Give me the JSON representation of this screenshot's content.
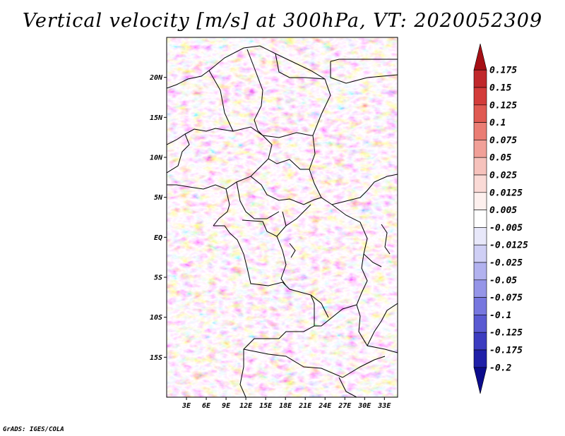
{
  "title": "Vertical velocity [m/s] at 300hPa, VT: 2020052309",
  "footer": "GrADS: IGES/COLA",
  "chart_data": {
    "type": "heatmap",
    "title": "Vertical velocity [m/s] at 300hPa, VT: 2020052309",
    "variable": "Vertical velocity",
    "units": "m/s",
    "level": "300hPa",
    "valid_time": "2020052309",
    "xlabel": "",
    "ylabel": "",
    "x_ticks": [
      "3E",
      "6E",
      "9E",
      "12E",
      "15E",
      "18E",
      "21E",
      "24E",
      "27E",
      "30E",
      "33E"
    ],
    "x_tick_values": [
      3,
      6,
      9,
      12,
      15,
      18,
      21,
      24,
      27,
      30,
      33
    ],
    "y_ticks": [
      "20N",
      "15N",
      "10N",
      "5N",
      "EQ",
      "5S",
      "10S",
      "15S"
    ],
    "y_tick_values": [
      20,
      15,
      10,
      5,
      0,
      -5,
      -10,
      -15
    ],
    "xlim": [
      0,
      35
    ],
    "ylim": [
      -20,
      25
    ],
    "colorbar": {
      "levels": [
        "0.175",
        "0.15",
        "0.125",
        "0.1",
        "0.075",
        "0.05",
        "0.025",
        "0.0125",
        "0.005",
        "-0.005",
        "-0.0125",
        "-0.025",
        "-0.05",
        "-0.075",
        "-0.1",
        "-0.125",
        "-0.175",
        "-0.2"
      ],
      "colors": [
        "#a50f15",
        "#c0282b",
        "#d33c3a",
        "#e05a52",
        "#ea7d74",
        "#f1a098",
        "#f6c2bc",
        "#fadad6",
        "#fdf0ee",
        "#ffffff",
        "#e8e8fa",
        "#cfcff5",
        "#b2b2ef",
        "#9595e8",
        "#7777df",
        "#5a5ad2",
        "#3c3cc0",
        "#2020a8",
        "#0c0c8c"
      ]
    }
  }
}
